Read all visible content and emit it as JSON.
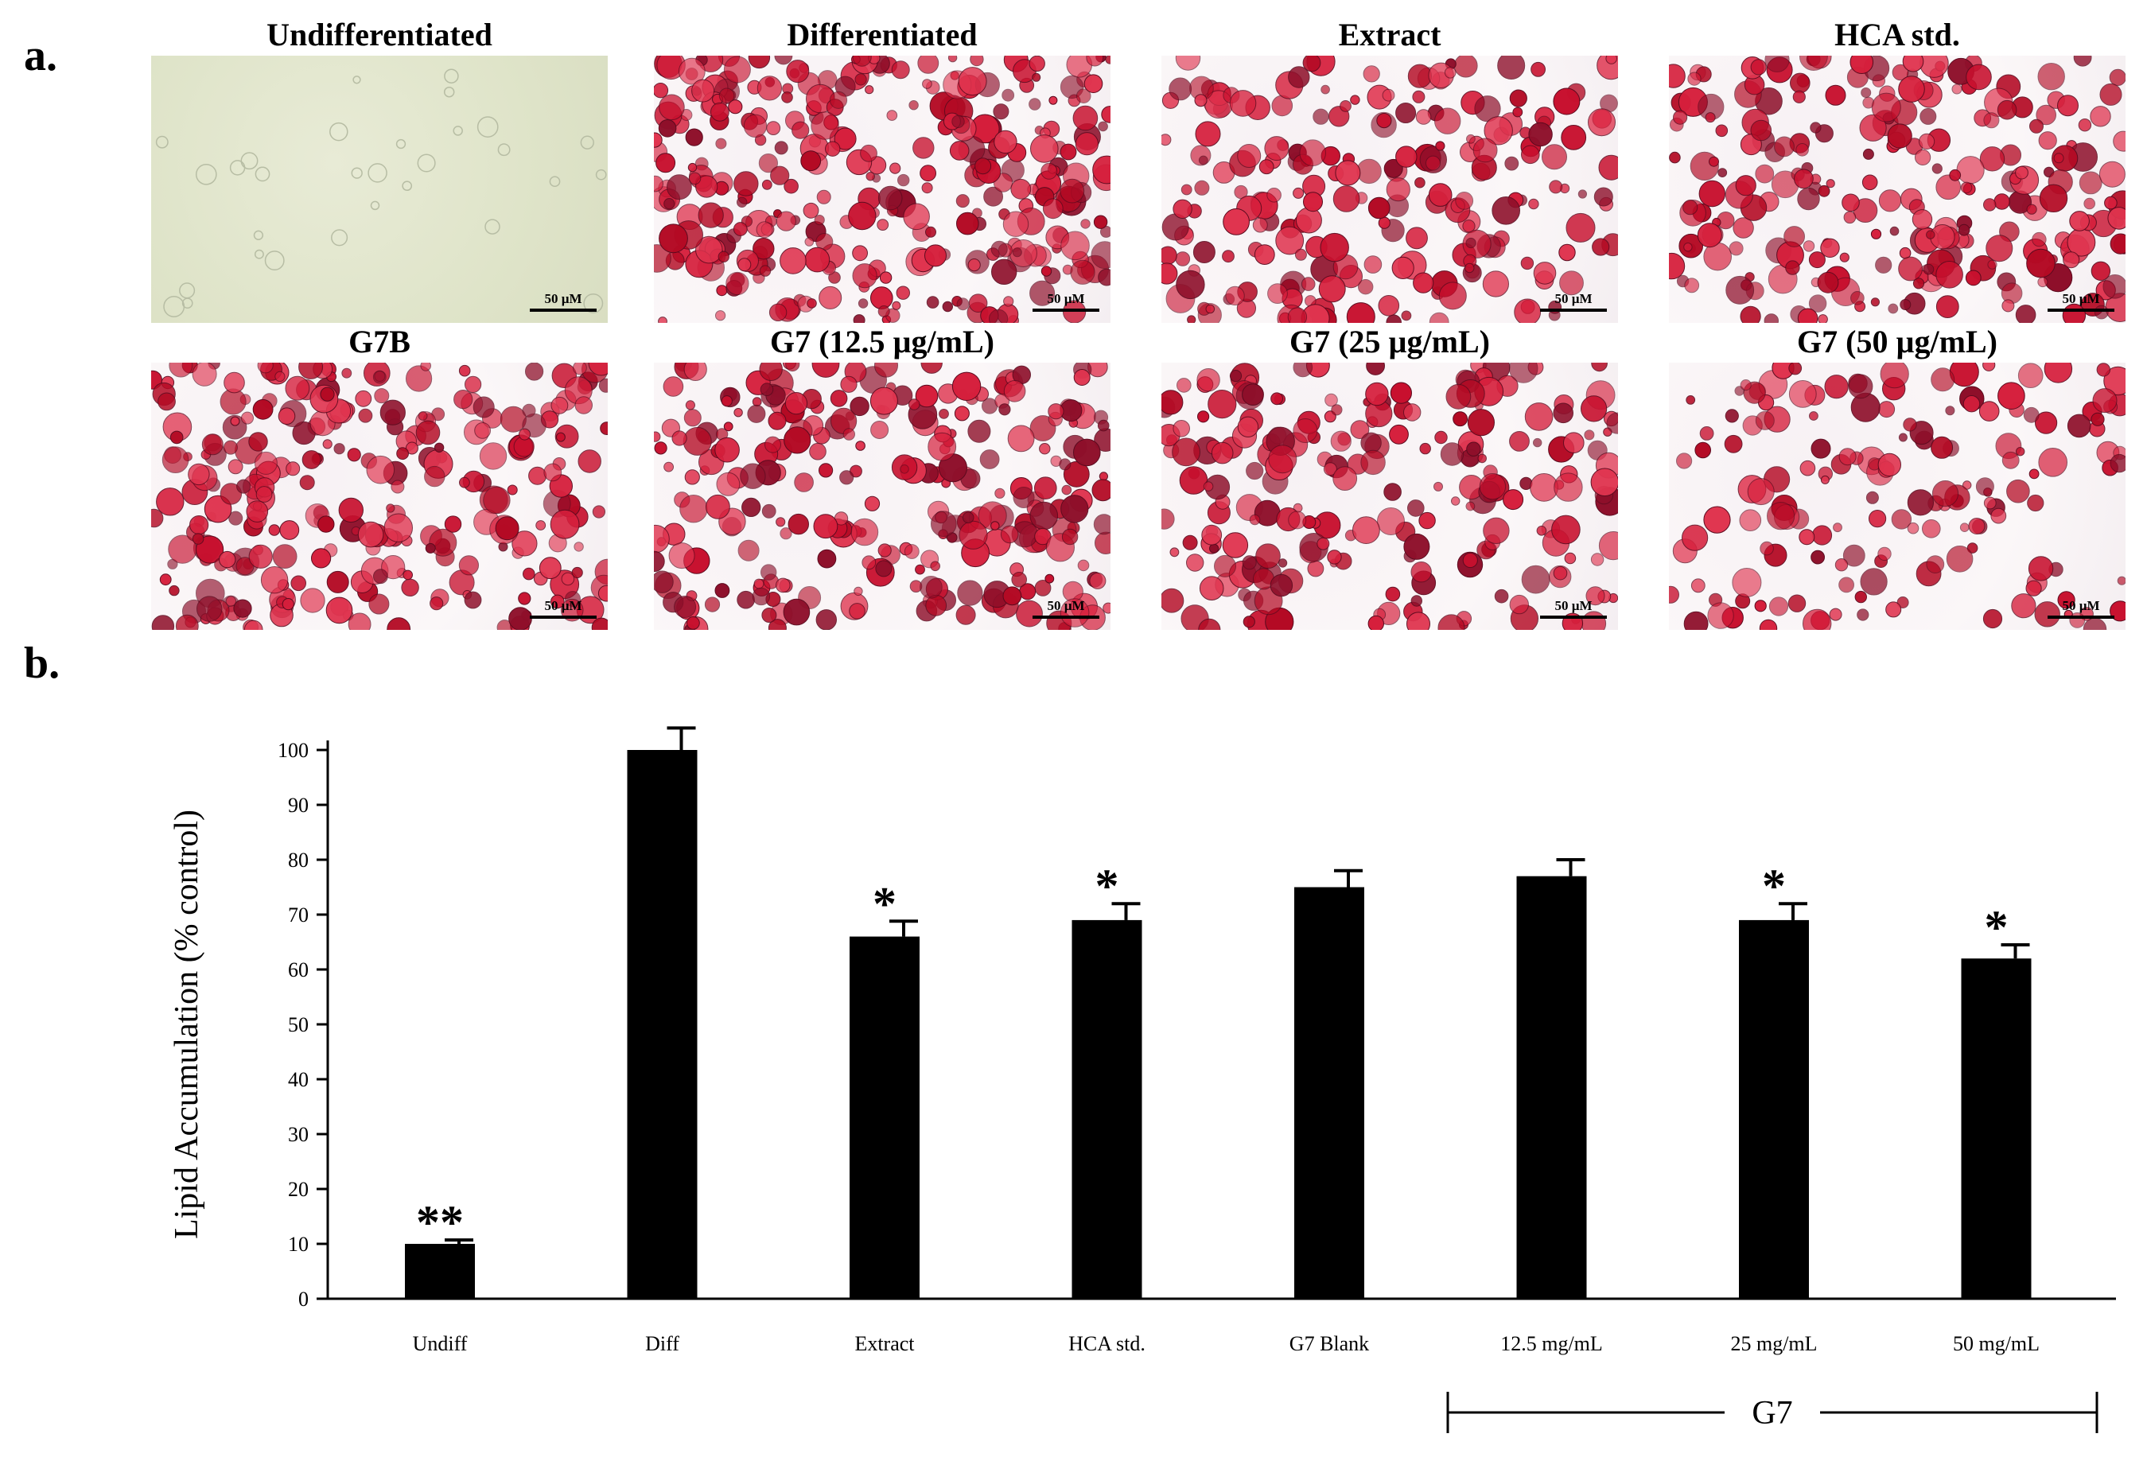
{
  "panel_a": {
    "letter": "a.",
    "scale_label": "50 µM",
    "images": [
      {
        "label": "Undifferentiated",
        "staining": 0.0
      },
      {
        "label": "Differentiated",
        "staining": 0.95
      },
      {
        "label": "Extract",
        "staining": 0.6
      },
      {
        "label": "HCA std.",
        "staining": 0.7
      },
      {
        "label": "G7B",
        "staining": 0.8
      },
      {
        "label": "G7 (12.5 µg/mL)",
        "staining": 0.75
      },
      {
        "label": "G7 (25 µg/mL)",
        "staining": 0.6
      },
      {
        "label": "G7 (50 µg/mL)",
        "staining": 0.4
      }
    ]
  },
  "panel_b": {
    "letter": "b."
  },
  "chart_data": {
    "type": "bar",
    "title": "",
    "xlabel": "",
    "ylabel": "Lipid Accumulation (% control)",
    "ylim": [
      0,
      100
    ],
    "yticks": [
      0,
      10,
      20,
      30,
      40,
      50,
      60,
      70,
      80,
      90,
      100
    ],
    "categories": [
      "Undiff",
      "Diff",
      "Extract",
      "HCA std.",
      "G7 Blank",
      "12.5 mg/mL",
      "25 mg/mL",
      "50 mg/mL"
    ],
    "values": [
      10,
      100,
      66,
      69,
      75,
      77,
      69,
      62
    ],
    "errors": [
      0.7,
      4,
      2.8,
      3,
      3,
      3,
      3,
      2.5
    ],
    "significance": [
      "**",
      "",
      "*",
      "*",
      "",
      "",
      "*",
      "*"
    ],
    "bar_color": "#000000",
    "group_label": "G7"
  }
}
